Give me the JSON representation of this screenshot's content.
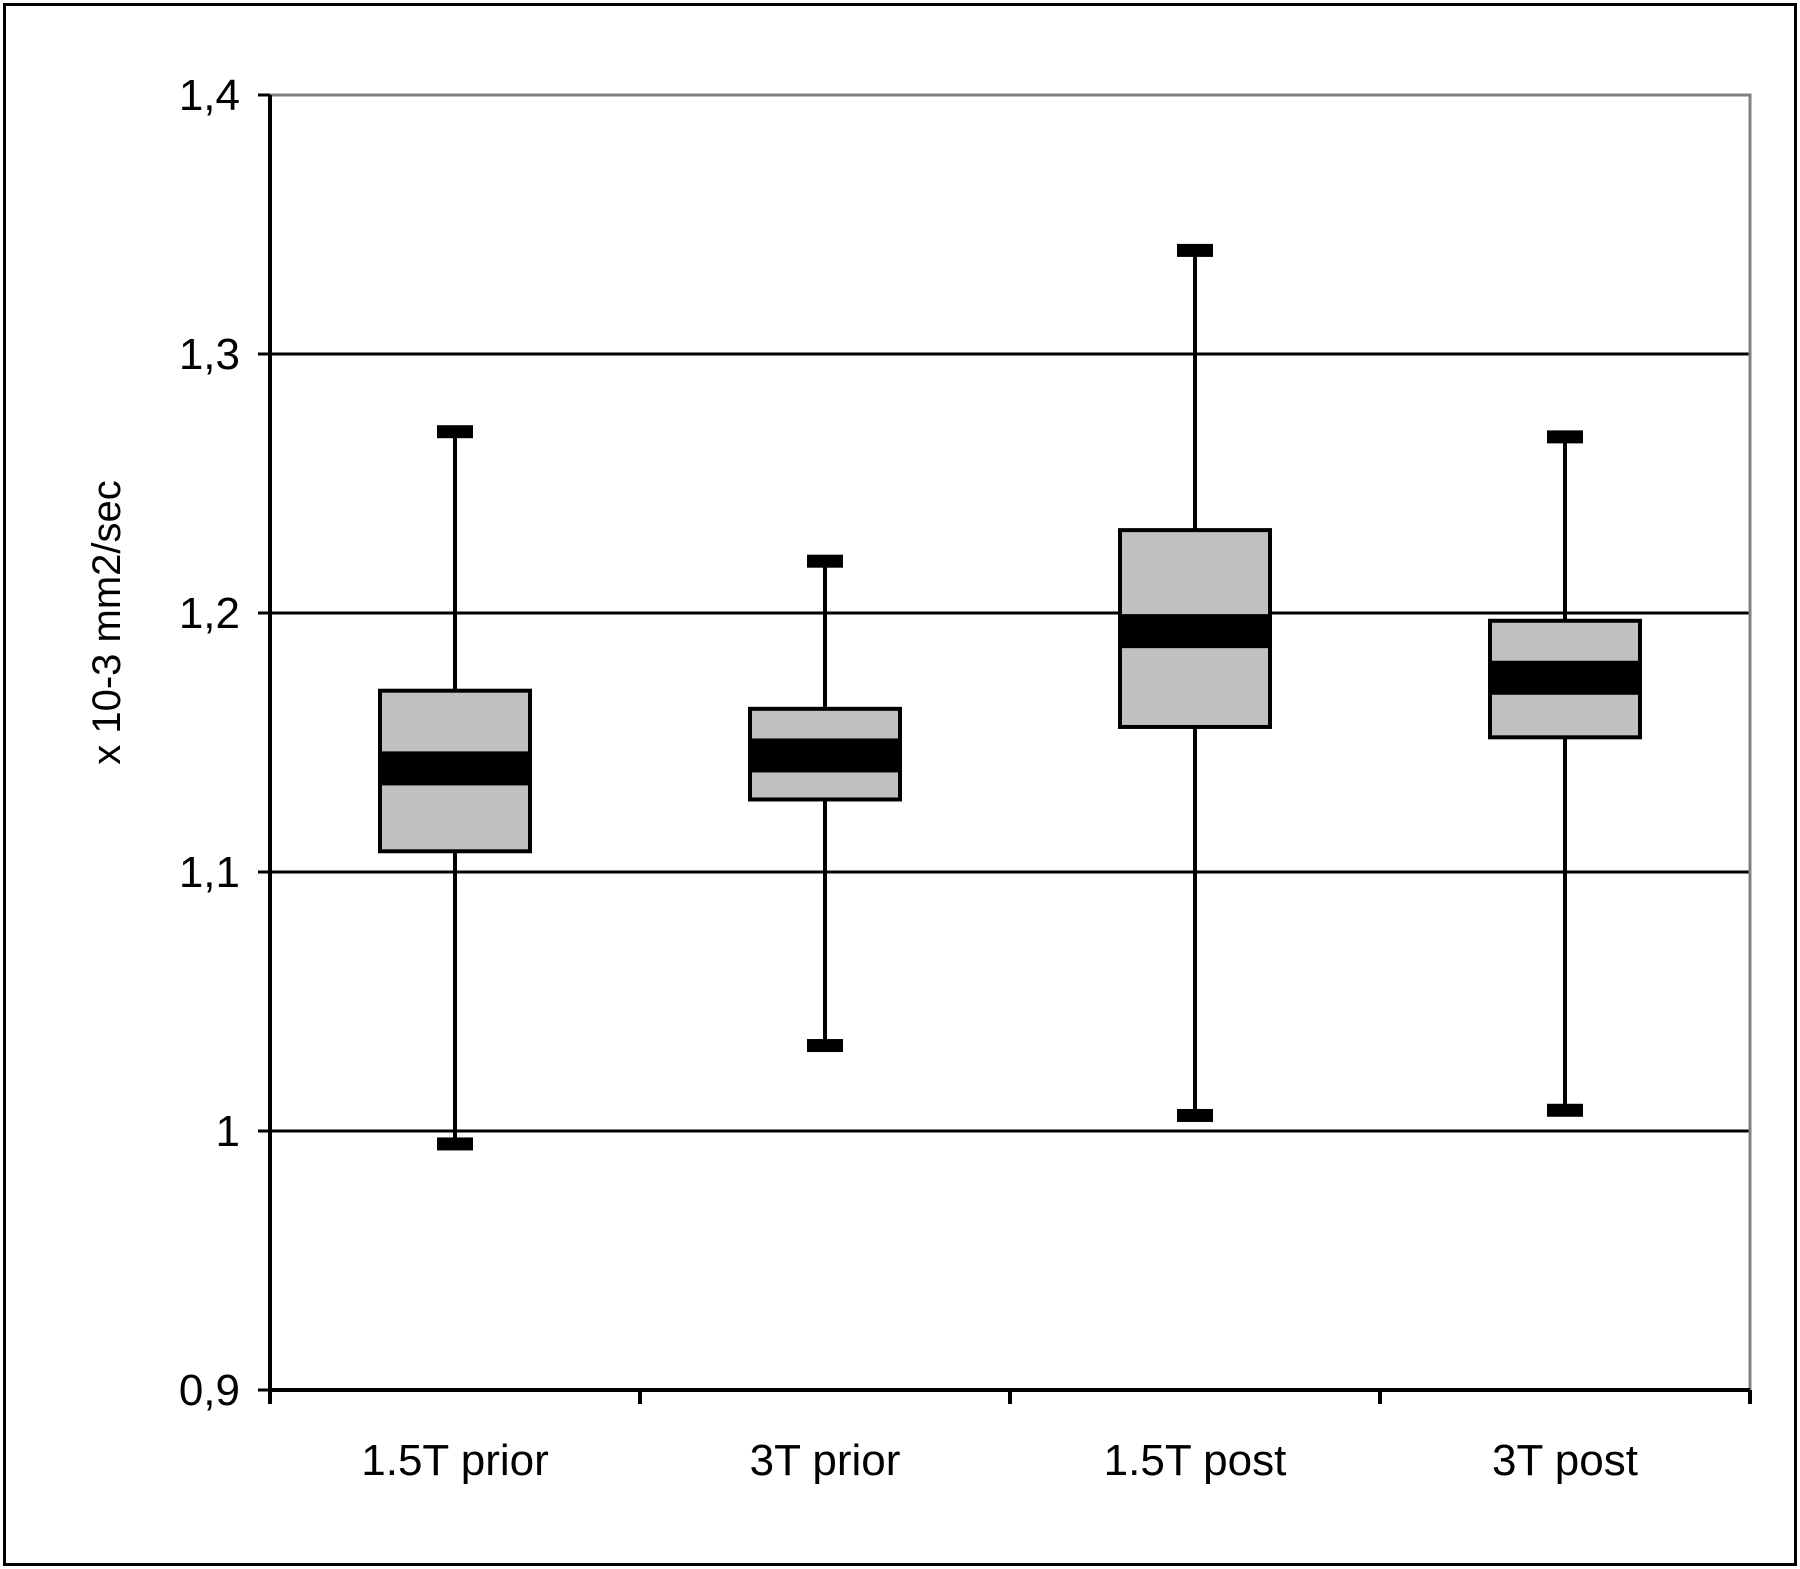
{
  "chart_data": {
    "type": "box",
    "title": "",
    "xlabel": "",
    "ylabel": "x 10-3 mm2/sec",
    "ylim": [
      0.9,
      1.4
    ],
    "y_ticks": [
      0.9,
      1.0,
      1.1,
      1.2,
      1.3,
      1.4
    ],
    "y_tick_labels": [
      "0,9",
      "1",
      "1,1",
      "1,2",
      "1,3",
      "1,4"
    ],
    "grid": true,
    "categories": [
      "1.5T prior",
      "3T prior",
      "1.5T post",
      "3T post"
    ],
    "boxes": [
      {
        "category": "1.5T prior",
        "min": 0.995,
        "q1": 1.108,
        "median": 1.14,
        "q3": 1.17,
        "max": 1.27
      },
      {
        "category": "3T prior",
        "min": 1.033,
        "q1": 1.128,
        "median": 1.145,
        "q3": 1.163,
        "max": 1.22
      },
      {
        "category": "1.5T post",
        "min": 1.006,
        "q1": 1.156,
        "median": 1.193,
        "q3": 1.232,
        "max": 1.34
      },
      {
        "category": "3T post",
        "min": 1.008,
        "q1": 1.152,
        "median": 1.175,
        "q3": 1.197,
        "max": 1.268
      }
    ],
    "colors": {
      "box_fill": "#c0c0c0",
      "stroke": "#000000",
      "frame": "#808080"
    }
  }
}
